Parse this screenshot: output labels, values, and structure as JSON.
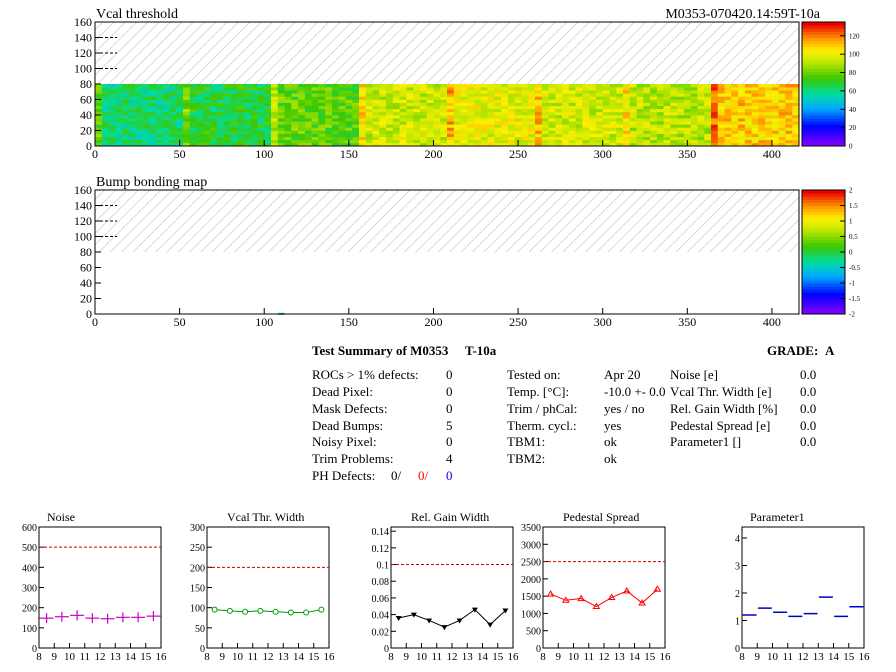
{
  "header": {
    "title_top": "Vcal threshold",
    "module_id": "M0353-070420.14:59T-10a",
    "title_bump": "Bump bonding map"
  },
  "summary": {
    "title": "Test Summary of M0353",
    "test": "T-10a",
    "grade_label": "GRADE:",
    "grade": "A",
    "left": [
      {
        "label": "ROCs > 1% defects:",
        "value": "0"
      },
      {
        "label": "Dead Pixel:",
        "value": "0"
      },
      {
        "label": "Mask Defects:",
        "value": "0"
      },
      {
        "label": "Dead Bumps:",
        "value": "5"
      },
      {
        "label": "Noisy Pixel:",
        "value": "0"
      },
      {
        "label": "Trim Problems:",
        "value": "4"
      }
    ],
    "ph_label": "PH Defects:",
    "ph_values": [
      "0/",
      "0/",
      "0"
    ],
    "middle": [
      {
        "label": "Tested on:",
        "value": "Apr 20"
      },
      {
        "label": "Temp. [°C]:",
        "value": "-10.0 +- 0.0"
      },
      {
        "label": "Trim / phCal:",
        "value": "yes / no"
      },
      {
        "label": "Therm. cycl.:",
        "value": "yes"
      },
      {
        "label": "TBM1:",
        "value": "ok"
      },
      {
        "label": "TBM2:",
        "value": "ok"
      }
    ],
    "right": [
      {
        "label": "Noise [e]",
        "value": "0.0"
      },
      {
        "label": "Vcal Thr. Width [e]",
        "value": "0.0"
      },
      {
        "label": "Rel. Gain Width [%]",
        "value": "0.0"
      },
      {
        "label": "Pedestal Spread [e]",
        "value": "0.0"
      },
      {
        "label": "Parameter1 []",
        "value": "0.0"
      }
    ]
  },
  "colors": {
    "noise": "#cc00cc",
    "vcal": "#009900",
    "gain": "#000000",
    "pedestal": "#ff0000",
    "param": "#0000cc",
    "cut": "#cc0000",
    "ph_red": "#ff0000",
    "ph_blue": "#0000ff"
  },
  "chart_data": [
    {
      "type": "heatmap",
      "title": "Vcal threshold",
      "xlim": [
        0,
        416
      ],
      "ylim": [
        0,
        160
      ],
      "xticks": [
        0,
        50,
        100,
        150,
        200,
        250,
        300,
        350,
        400
      ],
      "yticks": [
        0,
        20,
        40,
        60,
        80,
        100,
        120,
        140,
        160
      ],
      "zticks": [
        0,
        20,
        40,
        60,
        80,
        100,
        120
      ],
      "zlim": [
        0,
        135
      ],
      "filled_rows": [
        0,
        80
      ],
      "roc_mean_z": [
        62,
        68,
        78,
        95,
        100,
        96,
        92,
        110
      ]
    },
    {
      "type": "heatmap",
      "title": "Bump bonding map",
      "xlim": [
        0,
        416
      ],
      "ylim": [
        0,
        160
      ],
      "xticks": [
        0,
        50,
        100,
        150,
        200,
        250,
        300,
        350,
        400
      ],
      "yticks": [
        0,
        20,
        40,
        60,
        80,
        100,
        120,
        140,
        160
      ],
      "zticks": [
        -2,
        -1.5,
        -1,
        -0.5,
        0,
        0.5,
        1,
        1.5,
        2
      ],
      "zlim": [
        -2,
        2
      ],
      "filled_rows": [
        0,
        80
      ]
    },
    {
      "type": "scatter",
      "title": "Noise",
      "xlim": [
        8,
        16
      ],
      "ylim": [
        0,
        600
      ],
      "xticks": [
        8,
        9,
        10,
        11,
        12,
        13,
        14,
        15,
        16
      ],
      "yticks": [
        0,
        100,
        200,
        300,
        400,
        500,
        600
      ],
      "cut": 500,
      "marker": "plus",
      "line": false,
      "x": [
        8.5,
        9.5,
        10.5,
        11.5,
        12.5,
        13.5,
        14.5,
        15.5
      ],
      "y": [
        148,
        155,
        162,
        148,
        145,
        152,
        152,
        158
      ]
    },
    {
      "type": "line",
      "title": "Vcal Thr. Width",
      "xlim": [
        8,
        16
      ],
      "ylim": [
        0,
        300
      ],
      "xticks": [
        8,
        9,
        10,
        11,
        12,
        13,
        14,
        15,
        16
      ],
      "yticks": [
        0,
        50,
        100,
        150,
        200,
        250,
        300
      ],
      "cut": 200,
      "marker": "circle",
      "line": true,
      "x": [
        8.5,
        9.5,
        10.5,
        11.5,
        12.5,
        13.5,
        14.5,
        15.5
      ],
      "y": [
        95,
        92,
        90,
        92,
        90,
        88,
        88,
        95
      ]
    },
    {
      "type": "line",
      "title": "Rel. Gain Width",
      "xlim": [
        8,
        16
      ],
      "ylim": [
        0,
        0.145
      ],
      "xticks": [
        8,
        9,
        10,
        11,
        12,
        13,
        14,
        15,
        16
      ],
      "yticks": [
        0,
        0.02,
        0.04,
        0.06,
        0.08,
        0.1,
        0.12,
        0.14
      ],
      "cut": 0.1,
      "marker": "tri-down",
      "line": true,
      "x": [
        8.5,
        9.5,
        10.5,
        11.5,
        12.5,
        13.5,
        14.5,
        15.5
      ],
      "y": [
        0.036,
        0.04,
        0.033,
        0.025,
        0.033,
        0.046,
        0.028,
        0.045
      ]
    },
    {
      "type": "line",
      "title": "Pedestal Spread",
      "xlim": [
        8,
        16
      ],
      "ylim": [
        0,
        3500
      ],
      "xticks": [
        8,
        9,
        10,
        11,
        12,
        13,
        14,
        15,
        16
      ],
      "yticks": [
        0,
        500,
        1000,
        1500,
        2000,
        2500,
        3000,
        3500
      ],
      "cut": 2500,
      "marker": "tri-up",
      "line": true,
      "x": [
        8.5,
        9.5,
        10.5,
        11.5,
        12.5,
        13.5,
        14.5,
        15.5
      ],
      "y": [
        1560,
        1380,
        1430,
        1200,
        1460,
        1650,
        1300,
        1700
      ]
    },
    {
      "type": "scatter",
      "title": "Parameter1",
      "xlim": [
        8,
        16
      ],
      "ylim": [
        0,
        4.4
      ],
      "xticks": [
        8,
        9,
        10,
        11,
        12,
        13,
        14,
        15,
        16
      ],
      "yticks": [
        0,
        1,
        2,
        3,
        4
      ],
      "marker": "hline",
      "line": false,
      "x": [
        8.5,
        9.5,
        10.5,
        11.5,
        12.5,
        13.5,
        14.5,
        15.5
      ],
      "y": [
        1.2,
        1.45,
        1.3,
        1.15,
        1.25,
        1.85,
        1.15,
        1.5
      ]
    }
  ]
}
